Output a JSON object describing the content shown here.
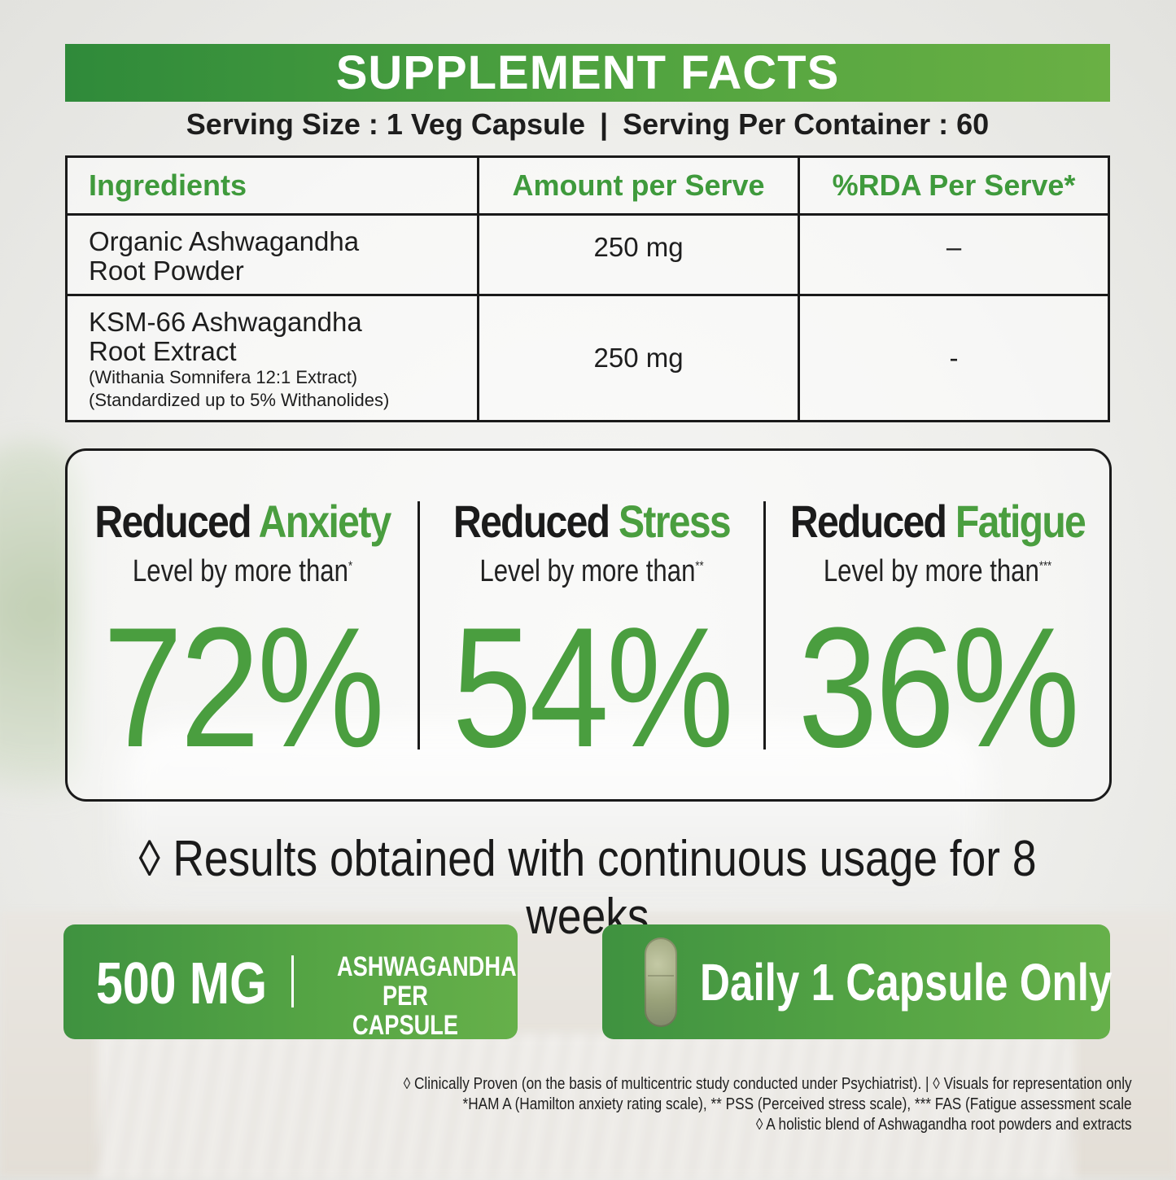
{
  "title": "SUPPLEMENT FACTS",
  "serving": {
    "size": "Serving Size : 1 Veg Capsule",
    "separator": "|",
    "per_container": "Serving Per Container : 60"
  },
  "table": {
    "headers": [
      "Ingredients",
      "Amount per Serve",
      "%RDA Per Serve*"
    ],
    "rows": [
      {
        "name_line1": "Organic Ashwagandha",
        "name_line2": "Root Powder",
        "amount": "250 mg",
        "rda": "–"
      },
      {
        "name_line1": "KSM-66 Ashwagandha",
        "name_line2": "Root Extract",
        "note1": "(Withania Somnifera 12:1 Extract)",
        "note2": "(Standardized up to 5% Withanolides)",
        "amount": "250 mg",
        "rda": "-"
      }
    ]
  },
  "stats": [
    {
      "prefix": "Reduced",
      "keyword": "Anxiety",
      "level": "Level by more than",
      "mark": "*",
      "value": "72%"
    },
    {
      "prefix": "Reduced",
      "keyword": "Stress",
      "level": "Level by more than",
      "mark": "**",
      "value": "54%"
    },
    {
      "prefix": "Reduced",
      "keyword": "Fatigue",
      "level": "Level by more than",
      "mark": "***",
      "value": "36%"
    }
  ],
  "results": {
    "symbol": "◊",
    "text": "Results obtained with continuous usage for 8 weeks"
  },
  "badges": {
    "dose": "500 MG",
    "dose_sep": "|",
    "per_line1": "ASHWAGANDHA",
    "per_line2": "PER CAPSULE",
    "daily": "Daily 1 Capsule Only"
  },
  "footnotes": [
    "◊ Clinically Proven (on the basis of multicentric study conducted under Psychiatrist). | ◊ Visuals for representation only",
    "*HAM A (Hamilton anxiety rating scale), ** PSS (Perceived stress scale), *** FAS (Fatigue assessment scale",
    "◊ A holistic blend of Ashwagandha root powders and extracts"
  ],
  "colors": {
    "brand_green": "#4a9e3f",
    "dark_green": "#2f8a3a"
  }
}
